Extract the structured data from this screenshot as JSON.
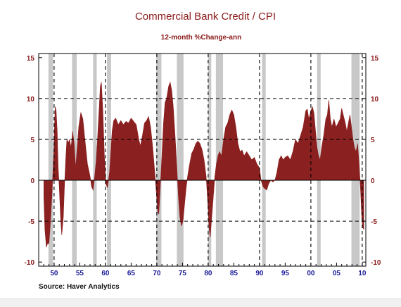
{
  "chart_data": {
    "type": "area",
    "title": "Commercial Bank Credit / CPI",
    "subtitle": "12-month %Change-ann",
    "source": "Source:  Haver Analytics",
    "y_ticks": [
      "15",
      "10",
      "5",
      "0",
      "-5",
      "-10"
    ],
    "y_tick_values": [
      15,
      10,
      5,
      0,
      -5,
      -10
    ],
    "x_ticks": [
      "50",
      "55",
      "60",
      "65",
      "70",
      "75",
      "80",
      "85",
      "90",
      "95",
      "00",
      "05",
      "10"
    ],
    "x_tick_years": [
      1950,
      1955,
      1960,
      1965,
      1970,
      1975,
      1980,
      1985,
      1990,
      1995,
      2000,
      2005,
      2010
    ],
    "xlim": [
      1947.0,
      2010.7
    ],
    "ylim": [
      -10.5,
      15.5
    ],
    "grid": "dashed",
    "dashed_vertical_lines": [
      1950,
      1960,
      1970,
      1980,
      1990,
      2000,
      2010
    ],
    "dashed_horizontal_lines": [
      10,
      5,
      -5
    ],
    "recessions": [
      [
        1948.9,
        1949.8
      ],
      [
        1953.5,
        1954.4
      ],
      [
        1957.6,
        1958.3
      ],
      [
        1960.3,
        1961.1
      ],
      [
        1969.9,
        1970.9
      ],
      [
        1973.9,
        1975.2
      ],
      [
        1980.0,
        1980.6
      ],
      [
        1981.5,
        1982.9
      ],
      [
        1990.5,
        1991.2
      ],
      [
        2001.2,
        2001.9
      ],
      [
        2007.9,
        2009.5
      ]
    ],
    "series": [
      {
        "color": "#8b2020",
        "points": [
          [
            1948.0,
            -2.0
          ],
          [
            1948.2,
            -6.0
          ],
          [
            1948.5,
            -8.2
          ],
          [
            1948.8,
            -7.6
          ],
          [
            1949.0,
            -7.8
          ],
          [
            1949.3,
            -5.0
          ],
          [
            1949.6,
            -1.5
          ],
          [
            1949.9,
            3.0
          ],
          [
            1950.2,
            9.0
          ],
          [
            1950.4,
            8.5
          ],
          [
            1950.6,
            6.0
          ],
          [
            1950.8,
            1.5
          ],
          [
            1951.0,
            -0.8
          ],
          [
            1951.3,
            -5.0
          ],
          [
            1951.5,
            -6.7
          ],
          [
            1951.8,
            -4.5
          ],
          [
            1952.0,
            -1.0
          ],
          [
            1952.3,
            3.0
          ],
          [
            1952.5,
            5.0
          ],
          [
            1952.8,
            4.6
          ],
          [
            1953.0,
            5.0
          ],
          [
            1953.3,
            4.0
          ],
          [
            1953.6,
            6.0
          ],
          [
            1953.9,
            4.5
          ],
          [
            1954.2,
            1.5
          ],
          [
            1954.5,
            4.0
          ],
          [
            1954.8,
            6.5
          ],
          [
            1955.2,
            8.3
          ],
          [
            1955.6,
            7.5
          ],
          [
            1956.0,
            5.0
          ],
          [
            1956.5,
            2.0
          ],
          [
            1957.0,
            0.5
          ],
          [
            1957.3,
            -0.8
          ],
          [
            1957.6,
            -1.2
          ],
          [
            1957.9,
            0.5
          ],
          [
            1958.2,
            2.5
          ],
          [
            1958.5,
            5.5
          ],
          [
            1958.8,
            9.0
          ],
          [
            1959.0,
            11.5
          ],
          [
            1959.2,
            12.0
          ],
          [
            1959.5,
            8.5
          ],
          [
            1959.8,
            3.0
          ],
          [
            1960.1,
            -0.5
          ],
          [
            1960.4,
            -0.9
          ],
          [
            1960.8,
            1.0
          ],
          [
            1961.0,
            3.0
          ],
          [
            1961.3,
            6.0
          ],
          [
            1961.6,
            7.3
          ],
          [
            1962.0,
            7.6
          ],
          [
            1962.5,
            6.8
          ],
          [
            1963.0,
            7.3
          ],
          [
            1963.5,
            6.8
          ],
          [
            1964.0,
            7.2
          ],
          [
            1964.5,
            7.0
          ],
          [
            1965.0,
            7.6
          ],
          [
            1965.5,
            7.2
          ],
          [
            1966.0,
            6.8
          ],
          [
            1966.5,
            5.0
          ],
          [
            1966.8,
            4.2
          ],
          [
            1967.2,
            5.5
          ],
          [
            1967.6,
            7.0
          ],
          [
            1968.0,
            7.3
          ],
          [
            1968.4,
            7.8
          ],
          [
            1968.8,
            6.5
          ],
          [
            1969.2,
            4.0
          ],
          [
            1969.6,
            1.0
          ],
          [
            1969.9,
            -1.5
          ],
          [
            1970.2,
            -4.0
          ],
          [
            1970.4,
            -4.1
          ],
          [
            1970.7,
            -0.5
          ],
          [
            1971.0,
            3.0
          ],
          [
            1971.3,
            7.0
          ],
          [
            1971.6,
            9.5
          ],
          [
            1971.9,
            10.0
          ],
          [
            1972.3,
            11.5
          ],
          [
            1972.6,
            12.0
          ],
          [
            1972.9,
            11.0
          ],
          [
            1973.2,
            9.0
          ],
          [
            1973.6,
            5.0
          ],
          [
            1973.9,
            1.5
          ],
          [
            1974.2,
            -2.0
          ],
          [
            1974.5,
            -4.5
          ],
          [
            1974.8,
            -5.6
          ],
          [
            1975.1,
            -5.0
          ],
          [
            1975.4,
            -3.0
          ],
          [
            1975.7,
            -1.0
          ],
          [
            1976.0,
            0.5
          ],
          [
            1976.4,
            2.0
          ],
          [
            1976.8,
            3.3
          ],
          [
            1977.2,
            3.8
          ],
          [
            1977.6,
            4.5
          ],
          [
            1978.0,
            4.8
          ],
          [
            1978.4,
            4.5
          ],
          [
            1978.8,
            3.8
          ],
          [
            1979.2,
            2.5
          ],
          [
            1979.6,
            0.5
          ],
          [
            1979.9,
            -2.5
          ],
          [
            1980.2,
            -6.0
          ],
          [
            1980.4,
            -7.0
          ],
          [
            1980.7,
            -4.5
          ],
          [
            1981.0,
            -2.0
          ],
          [
            1981.3,
            0.5
          ],
          [
            1981.6,
            2.0
          ],
          [
            1981.9,
            3.0
          ],
          [
            1982.2,
            3.5
          ],
          [
            1982.6,
            3.0
          ],
          [
            1983.0,
            5.0
          ],
          [
            1983.4,
            6.5
          ],
          [
            1983.8,
            7.0
          ],
          [
            1984.2,
            8.0
          ],
          [
            1984.6,
            8.6
          ],
          [
            1985.0,
            8.0
          ],
          [
            1985.4,
            6.5
          ],
          [
            1985.8,
            4.5
          ],
          [
            1986.2,
            3.5
          ],
          [
            1986.6,
            3.7
          ],
          [
            1987.0,
            3.0
          ],
          [
            1987.5,
            3.5
          ],
          [
            1988.0,
            3.0
          ],
          [
            1988.5,
            2.5
          ],
          [
            1989.0,
            2.8
          ],
          [
            1989.5,
            2.0
          ],
          [
            1990.0,
            1.5
          ],
          [
            1990.3,
            0.0
          ],
          [
            1990.7,
            -0.8
          ],
          [
            1991.0,
            -1.0
          ],
          [
            1991.4,
            -1.2
          ],
          [
            1991.8,
            -0.4
          ],
          [
            1992.2,
            0.0
          ],
          [
            1992.6,
            -0.2
          ],
          [
            1993.0,
            0.0
          ],
          [
            1993.4,
            1.0
          ],
          [
            1993.8,
            2.5
          ],
          [
            1994.2,
            3.0
          ],
          [
            1994.6,
            2.5
          ],
          [
            1995.0,
            2.8
          ],
          [
            1995.5,
            3.0
          ],
          [
            1996.0,
            2.5
          ],
          [
            1996.5,
            3.5
          ],
          [
            1997.0,
            5.0
          ],
          [
            1997.5,
            4.5
          ],
          [
            1998.0,
            5.5
          ],
          [
            1998.5,
            6.5
          ],
          [
            1999.0,
            8.5
          ],
          [
            1999.3,
            8.7
          ],
          [
            1999.6,
            7.5
          ],
          [
            2000.0,
            8.5
          ],
          [
            2000.3,
            9.0
          ],
          [
            2000.6,
            8.2
          ],
          [
            2000.9,
            6.0
          ],
          [
            2001.2,
            4.0
          ],
          [
            2001.5,
            3.0
          ],
          [
            2001.8,
            2.5
          ],
          [
            2002.1,
            4.0
          ],
          [
            2002.5,
            5.5
          ],
          [
            2002.9,
            7.5
          ],
          [
            2003.2,
            8.0
          ],
          [
            2003.5,
            9.8
          ],
          [
            2003.8,
            7.5
          ],
          [
            2004.1,
            6.5
          ],
          [
            2004.5,
            7.5
          ],
          [
            2004.9,
            6.5
          ],
          [
            2005.3,
            7.0
          ],
          [
            2005.7,
            7.5
          ],
          [
            2006.0,
            8.8
          ],
          [
            2006.3,
            8.0
          ],
          [
            2006.7,
            7.0
          ],
          [
            2007.0,
            6.0
          ],
          [
            2007.3,
            7.0
          ],
          [
            2007.6,
            8.0
          ],
          [
            2007.9,
            6.5
          ],
          [
            2008.2,
            5.0
          ],
          [
            2008.5,
            4.0
          ],
          [
            2008.8,
            3.5
          ],
          [
            2009.1,
            4.5
          ],
          [
            2009.4,
            2.0
          ],
          [
            2009.7,
            -1.5
          ],
          [
            2009.9,
            -4.5
          ],
          [
            2010.1,
            -5.8
          ],
          [
            2010.3,
            -6.0
          ]
        ]
      }
    ]
  }
}
